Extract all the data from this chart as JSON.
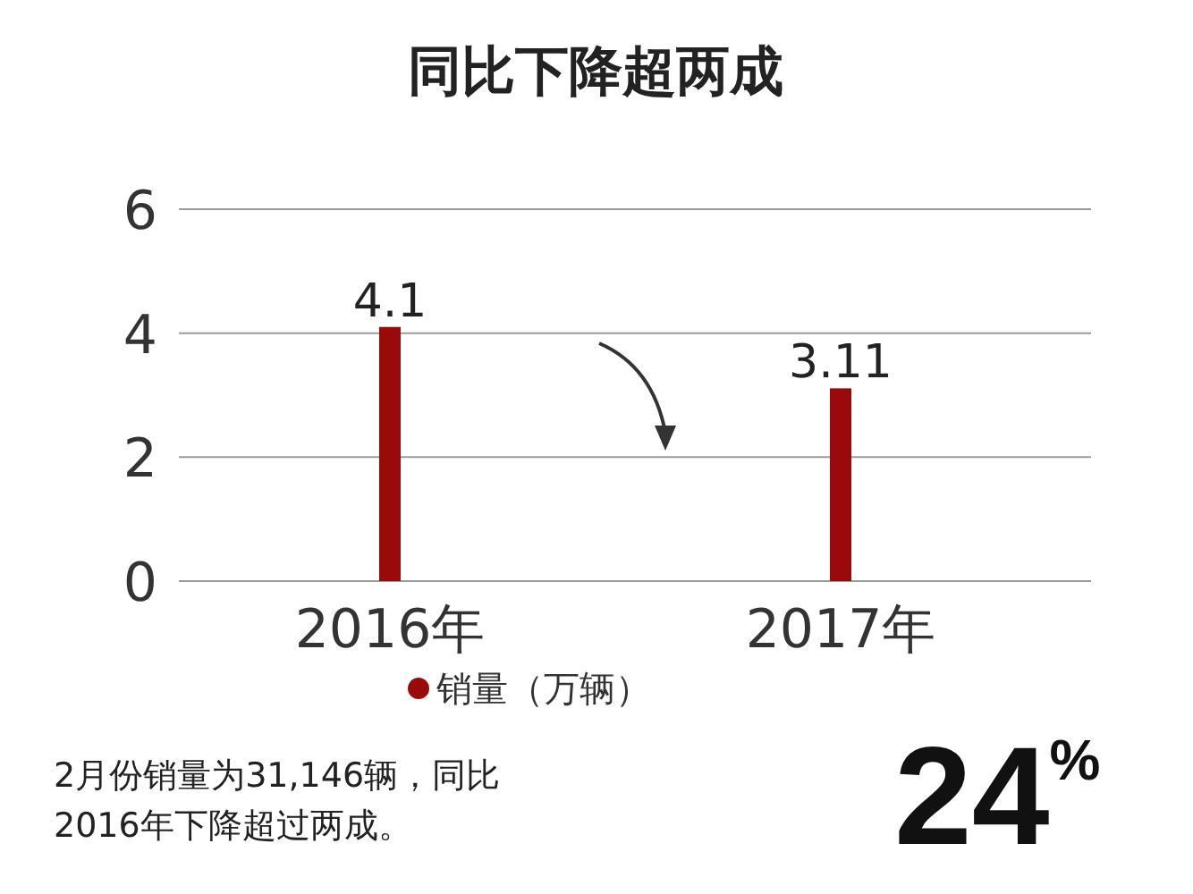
{
  "chart_data": {
    "type": "bar",
    "title": "同比下降超两成",
    "categories": [
      "2016年",
      "2017年"
    ],
    "series": [
      {
        "name": "销量（万辆）",
        "color": "#9b0a0a",
        "values": [
          4.1,
          3.11
        ]
      }
    ],
    "data_labels": true,
    "ylim": [
      0,
      6
    ],
    "yticks": [
      0,
      2,
      4,
      6
    ],
    "grid": "y",
    "legend": "bottom",
    "annotations": [
      "2月份销量为31,146辆，同比2016年下降超过两成。",
      "24$^{%}$"
    ]
  }
}
